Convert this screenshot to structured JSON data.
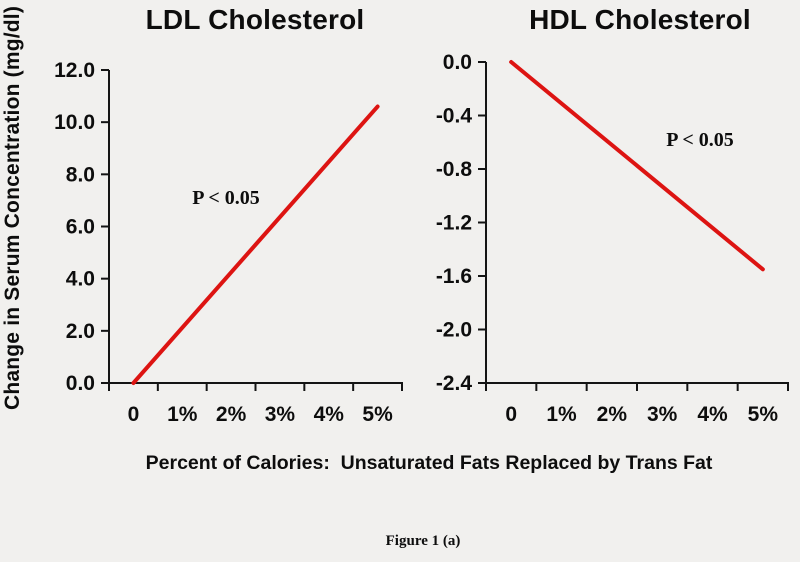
{
  "colors": {
    "background": "#f1f0ee",
    "text": "#0d0d0d",
    "axis": "#141414",
    "line": "#dd1412"
  },
  "figure": {
    "ylabel": "Change in Serum Concentration (mg/dl)",
    "xlabel": "Percent of Calories:  Unsaturated Fats Replaced by Trans Fat",
    "caption": "Figure 1 (a)"
  },
  "chart_data": [
    {
      "type": "line",
      "id": "ldl",
      "title": "LDL Cholesterol",
      "annotation": "P < 0.05",
      "x_ticks": [
        "0",
        "1%",
        "2%",
        "3%",
        "4%",
        "5%"
      ],
      "y_ticks": [
        "12.0",
        "10.0",
        "8.0",
        "6.0",
        "4.0",
        "2.0",
        "0.0"
      ],
      "ylim": [
        0,
        12
      ],
      "line": {
        "x": [
          0,
          5
        ],
        "y": [
          0.0,
          10.6
        ]
      },
      "legend": "none",
      "grid": "off"
    },
    {
      "type": "line",
      "id": "hdl",
      "title": "HDL Cholesterol",
      "annotation": "P < 0.05",
      "x_ticks": [
        "0",
        "1%",
        "2%",
        "3%",
        "4%",
        "5%"
      ],
      "y_ticks": [
        "0.0",
        "-0.4",
        "-0.8",
        "-1.2",
        "-1.6",
        "-2.0",
        "-2.4"
      ],
      "ylim": [
        -2.4,
        0
      ],
      "line": {
        "x": [
          0,
          5
        ],
        "y": [
          0.0,
          -1.55
        ]
      },
      "legend": "none",
      "grid": "off"
    }
  ]
}
